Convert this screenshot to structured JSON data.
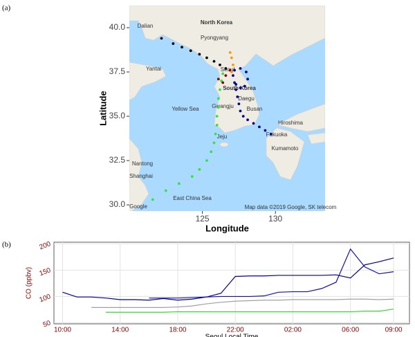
{
  "panel_labels": [
    "(a)",
    "(b)"
  ],
  "chart_data": [
    {
      "type": "map",
      "xlabel": "Longitude",
      "ylabel": "Latitude",
      "xlim": [
        120,
        133.4
      ],
      "ylim": [
        29.65,
        41.25
      ],
      "xticks": [
        125,
        130
      ],
      "yticks": [
        {
          "value": 30,
          "label": "30.0"
        },
        {
          "value": 32.5,
          "label": "32.5"
        },
        {
          "value": 35,
          "label": "35.0"
        },
        {
          "value": 37.5,
          "label": "37.5"
        },
        {
          "value": 40,
          "label": "40.0"
        }
      ],
      "map_labels": [
        "North Korea",
        "Pyongyang",
        "Seoul",
        "South Korea",
        "Gwangju",
        "Daegu",
        "Busan",
        "Jeju",
        "Fukuoka",
        "Hiroshima",
        "Kumamoto",
        "Dalian",
        "Yantai",
        "Nantong",
        "Shanghai",
        "Yellow Sea",
        "East China Sea",
        "Map data ©2019 Google, SK telecom",
        "Google"
      ],
      "series": [
        {
          "color": "#000000",
          "x": [
            122.2,
            123,
            123.6,
            124.2,
            124.8,
            125.3,
            125.8,
            126.2,
            126.6
          ],
          "values": [
            39.4,
            39.1,
            38.9,
            38.7,
            38.5,
            38.3,
            38.1,
            37.9,
            37.7
          ]
        },
        {
          "color": "#33e633",
          "x": [
            121.6,
            122.5,
            123.4,
            124.3,
            124.8,
            125.3,
            125.6,
            125.8,
            125.9,
            126,
            126,
            126.1,
            126.1,
            126.2,
            126.3,
            126.4
          ],
          "values": [
            30.3,
            30.8,
            31.2,
            31.6,
            32,
            32.5,
            33,
            33.5,
            34,
            34.5,
            35,
            35.5,
            36,
            36.5,
            37,
            37.4
          ]
        },
        {
          "color": "#00008b",
          "x": [
            129.7,
            129.3,
            128.9,
            128.5,
            128.1,
            127.8,
            127.6,
            127.5,
            127.4,
            127.3,
            127.2,
            127.1,
            127.2,
            127.6,
            128,
            128.1,
            127.9,
            127.6,
            127.3
          ],
          "values": [
            34,
            34.2,
            34.4,
            34.6,
            34.8,
            35,
            35.3,
            35.7,
            36.1,
            36.5,
            36.9,
            37.3,
            37.6,
            37.7,
            37.5,
            37.1,
            36.7,
            36.6,
            36.8
          ]
        },
        {
          "color": "#8b0000",
          "x": [
            126.1,
            126.4,
            126.6,
            126.9
          ],
          "values": [
            37.1,
            36.9,
            37.3,
            37.6
          ]
        },
        {
          "color": "#ff9900",
          "x": [
            127,
            127.1,
            127,
            126.9
          ],
          "values": [
            37.5,
            37.9,
            38.3,
            38.6
          ]
        }
      ]
    },
    {
      "type": "line",
      "xlabel": "Seoul Local Time",
      "ylabel": "CO (ppbv)",
      "xlim": [
        -0.6,
        24.1
      ],
      "ylim": [
        48,
        203
      ],
      "xticks": [
        {
          "value": 0,
          "label": "10:00"
        },
        {
          "value": 4,
          "label": "14:00"
        },
        {
          "value": 8,
          "label": "18:00"
        },
        {
          "value": 12,
          "label": "22:00"
        },
        {
          "value": 16,
          "label": "02:00"
        },
        {
          "value": 20,
          "label": "06:00"
        },
        {
          "value": 23,
          "label": "09:00"
        }
      ],
      "yticks": [
        50,
        100,
        150,
        200
      ],
      "grid": true,
      "x": [
        0,
        1,
        2,
        3,
        4,
        5,
        6,
        7,
        8,
        9,
        10,
        11,
        12,
        13,
        14,
        15,
        16,
        17,
        18,
        19,
        20,
        21,
        22,
        23
      ],
      "series": [
        {
          "color": "#00008b",
          "values": [
            108,
            99,
            99,
            97,
            94,
            94,
            93,
            96,
            93,
            95,
            99,
            106,
            138,
            139,
            139,
            140,
            140,
            140,
            140,
            141,
            135,
            160,
            166,
            173
          ]
        },
        {
          "color": "#1010b0",
          "values": [
            null,
            null,
            null,
            null,
            null,
            null,
            97,
            97,
            97,
            98,
            99,
            100,
            100,
            100,
            101,
            108,
            109,
            109,
            115,
            127,
            190,
            156,
            143,
            147
          ]
        },
        {
          "color": "#a0a0a0",
          "values": [
            null,
            null,
            79,
            79,
            79,
            79,
            79,
            79,
            80,
            82,
            86,
            89,
            91,
            92,
            93,
            93,
            94,
            94,
            94,
            94,
            95,
            95,
            94,
            95
          ]
        },
        {
          "color": "#33dd33",
          "values": [
            null,
            null,
            null,
            70,
            70,
            70,
            70,
            70,
            71,
            71,
            71,
            71,
            71,
            71,
            71,
            71,
            71,
            71,
            71,
            71,
            71,
            72,
            72,
            76
          ]
        }
      ]
    }
  ]
}
